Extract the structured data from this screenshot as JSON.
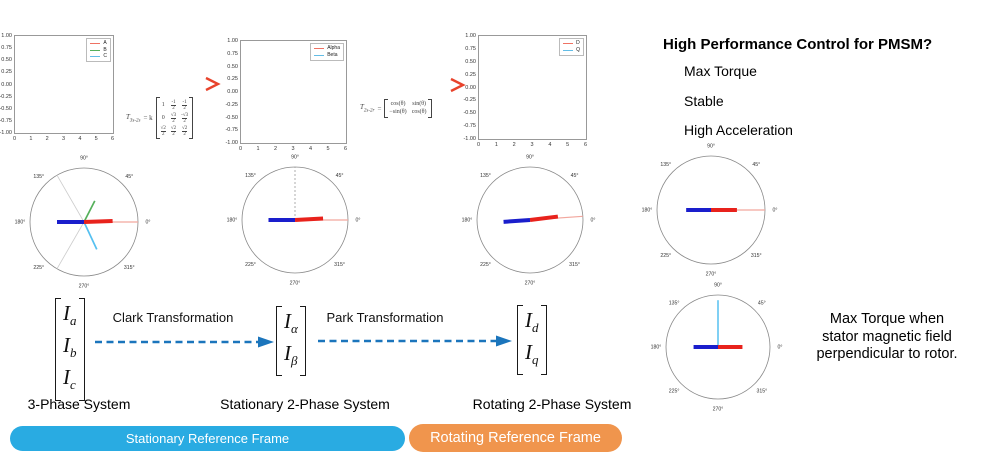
{
  "right_panel": {
    "heading": "High Performance Control for PMSM?",
    "bullets": [
      "Max Torque",
      "Stable",
      "High Acceleration"
    ],
    "note_lines": [
      "Max Torque when",
      "stator magnetic field",
      "perpendicular to rotor."
    ]
  },
  "flow": {
    "matrices": [
      {
        "symbol": "I",
        "rows": [
          "a",
          "b",
          "c"
        ]
      },
      {
        "symbol": "I",
        "rows": [
          "α",
          "β"
        ]
      },
      {
        "symbol": "I",
        "rows": [
          "d",
          "q"
        ]
      }
    ],
    "arrows": [
      {
        "label": "Clark Transformation"
      },
      {
        "label": "Park Transformation"
      }
    ],
    "arrow_color": "#1b75bc",
    "system_labels": [
      "3-Phase System",
      "Stationary 2-Phase System",
      "Rotating 2-Phase System"
    ]
  },
  "pills": [
    {
      "label": "Stationary Reference Frame",
      "color": "#29abe2",
      "text_color": "#ffffff"
    },
    {
      "label": "Rotating Reference Frame",
      "color": "#f0954d",
      "text_color": "#ffffff"
    }
  ],
  "formulas": [
    {
      "lhs": "T",
      "sub": "3s-2s",
      "pre": "= k",
      "matrix": [
        [
          "1",
          "-1/2",
          "-1/2"
        ],
        [
          "0",
          "√3/2",
          "-√3/2"
        ],
        [
          "√2/2",
          "√2/2",
          "√2/2"
        ]
      ]
    },
    {
      "lhs": "T",
      "sub": "2s-2r",
      "pre": "=",
      "matrix": [
        [
          "cos(θ)",
          "sin(θ)"
        ],
        [
          "−sin(θ)",
          "cos(θ)"
        ]
      ]
    }
  ],
  "top_arrow_gradient": {
    "start": "#2aa6dc",
    "end": "#e8502a",
    "head": "#e8432c"
  },
  "chart_data": {
    "timeseries_plots": [
      {
        "type": "line",
        "name": "three-phase-currents",
        "legend": [
          {
            "label": "A",
            "color": "#ef7263"
          },
          {
            "label": "B",
            "color": "#55b05b"
          },
          {
            "label": "C",
            "color": "#63bde6"
          }
        ],
        "y_ticks": [
          "1.00",
          "0.75",
          "0.50",
          "0.25",
          "0.00",
          "-0.25",
          "-0.50",
          "-0.75",
          "-1.00"
        ],
        "x_ticks": [
          "0",
          "1",
          "2",
          "3",
          "4",
          "5",
          "6"
        ],
        "ylim": [
          -1,
          1
        ],
        "xlim": [
          0,
          6
        ],
        "series": []
      },
      {
        "type": "line",
        "name": "alpha-beta-currents",
        "legend": [
          {
            "label": "Alpha",
            "color": "#ef7263"
          },
          {
            "label": "Beta",
            "color": "#63bde6"
          }
        ],
        "y_ticks": [
          "1.00",
          "0.75",
          "0.50",
          "0.25",
          "0.00",
          "-0.25",
          "-0.50",
          "-0.75",
          "-1.00"
        ],
        "x_ticks": [
          "0",
          "1",
          "2",
          "3",
          "4",
          "5",
          "6"
        ],
        "ylim": [
          -1,
          1
        ],
        "xlim": [
          0,
          6
        ],
        "series": []
      },
      {
        "type": "line",
        "name": "dq-currents",
        "legend": [
          {
            "label": "D",
            "color": "#ef7263"
          },
          {
            "label": "Q",
            "color": "#63bde6"
          }
        ],
        "y_ticks": [
          "1.00",
          "0.75",
          "0.50",
          "0.25",
          "0.00",
          "-0.25",
          "-0.50",
          "-0.75",
          "-1.00"
        ],
        "x_ticks": [
          "0",
          "1",
          "2",
          "3",
          "4",
          "5",
          "6"
        ],
        "ylim": [
          -1,
          1
        ],
        "xlim": [
          0,
          6
        ],
        "series": []
      }
    ],
    "polar_plots": [
      {
        "name": "three-phase-vector-plot",
        "angle_labels": [
          "0°",
          "45°",
          "90°",
          "135°",
          "180°",
          "225°",
          "270°",
          "315°"
        ],
        "lines": [
          {
            "angle": 120,
            "r": 1,
            "color": "#cccccc",
            "w": 0.8
          },
          {
            "angle": 240,
            "r": 1,
            "color": "#cccccc",
            "w": 0.8
          },
          {
            "angle": 0,
            "r": 1,
            "color": "#f2a79e",
            "w": 1.2
          },
          {
            "angle": 63,
            "r": 0.44,
            "color": "#55b05b",
            "w": 1.7
          },
          {
            "angle": 295,
            "r": 0.56,
            "color": "#55c0f0",
            "w": 1.7
          },
          {
            "angle": 2,
            "r": 0.53,
            "color": "#e8221c",
            "w": 4
          },
          {
            "angle": 180,
            "r": 0.5,
            "color": "#1a1ecc",
            "w": 4
          }
        ]
      },
      {
        "name": "alpha-beta-vector-plot",
        "angle_labels": [
          "0°",
          "45°",
          "90°",
          "135°",
          "180°",
          "225°",
          "270°",
          "315°"
        ],
        "lines": [
          {
            "angle": 90,
            "r": 1,
            "color": "#999999",
            "w": 0.8,
            "dash": "2,2"
          },
          {
            "angle": 0,
            "r": 1,
            "color": "#f2a79e",
            "w": 1.2
          },
          {
            "angle": 3,
            "r": 0.53,
            "color": "#e8221c",
            "w": 4
          },
          {
            "angle": 180,
            "r": 0.5,
            "color": "#1a1ecc",
            "w": 4
          }
        ]
      },
      {
        "name": "rotating-dq-vector-plot",
        "angle_labels": [
          "0°",
          "45°",
          "90°",
          "135°",
          "180°",
          "225°",
          "270°",
          "315°"
        ],
        "lines": [
          {
            "angle": 4,
            "r": 1,
            "color": "#f2a79e",
            "w": 1.2
          },
          {
            "angle": 7,
            "r": 0.53,
            "color": "#e8221c",
            "w": 4
          },
          {
            "angle": 184,
            "r": 0.5,
            "color": "#1a1ecc",
            "w": 4
          }
        ]
      },
      {
        "name": "stator-field-vector-plot",
        "angle_labels": [
          "0°",
          "45°",
          "90°",
          "135°",
          "180°",
          "225°",
          "270°",
          "315°"
        ],
        "lines": [
          {
            "angle": 0,
            "r": 1,
            "color": "#f2a79e",
            "w": 1.2
          },
          {
            "angle": 0,
            "r": 0.48,
            "color": "#e8221c",
            "w": 4
          },
          {
            "angle": 180,
            "r": 0.46,
            "color": "#1a1ecc",
            "w": 4
          }
        ]
      },
      {
        "name": "perpendicular-field-vector-plot",
        "angle_labels": [
          "0°",
          "45°",
          "90°",
          "135°",
          "180°",
          "225°",
          "270°",
          "315°"
        ],
        "lines": [
          {
            "angle": 90,
            "r": 0.9,
            "color": "#55c0f0",
            "w": 1.5
          },
          {
            "angle": 0,
            "r": 0.47,
            "color": "#e8221c",
            "w": 4
          },
          {
            "angle": 180,
            "r": 0.47,
            "color": "#1a1ecc",
            "w": 4
          }
        ]
      }
    ]
  }
}
